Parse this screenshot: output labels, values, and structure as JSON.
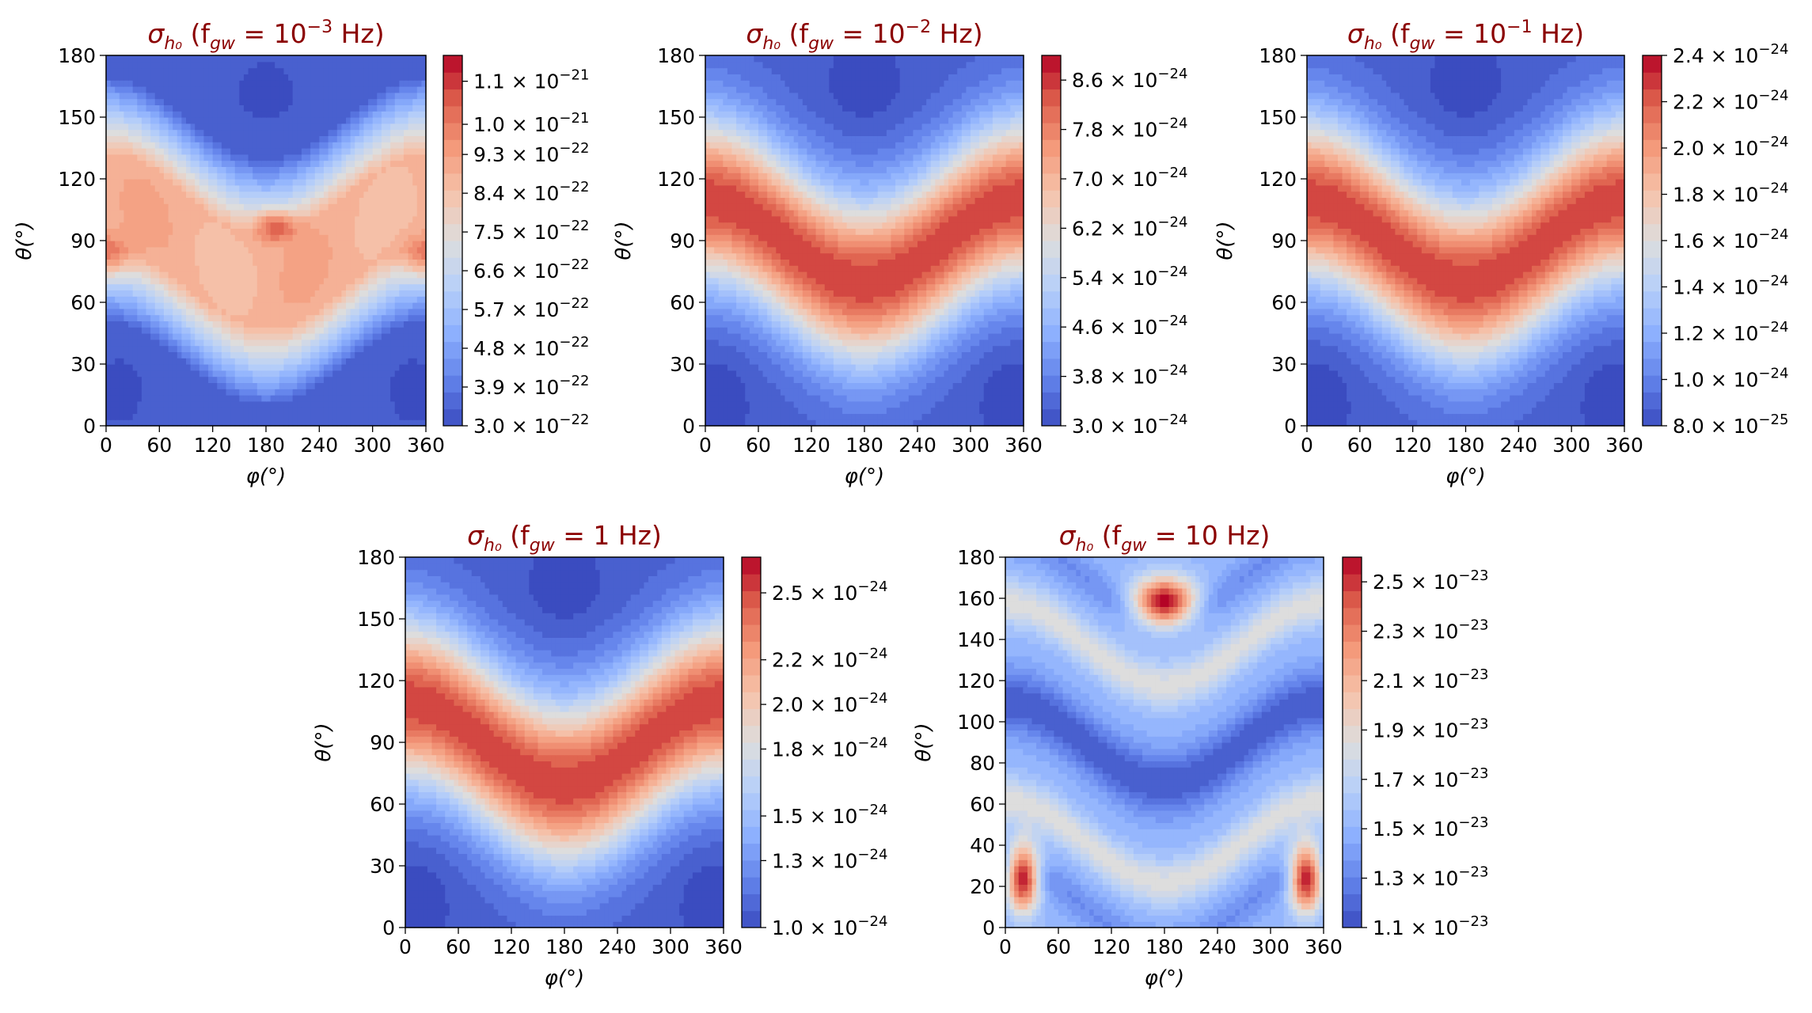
{
  "figure": {
    "background": "#ffffff",
    "colormap": "coolwarm"
  },
  "chart_data": [
    {
      "id": "p1",
      "type": "heatmap",
      "title_parts": [
        "σ",
        "h₀",
        " (f",
        "gw",
        " = 10",
        "−3",
        " Hz)"
      ],
      "xlabel": "φ(°)",
      "ylabel": "θ(°)",
      "xlim": [
        0,
        360
      ],
      "ylim": [
        0,
        180
      ],
      "xticks": [
        "0",
        "60",
        "120",
        "180",
        "240",
        "300",
        "360"
      ],
      "yticks": [
        "0",
        "30",
        "60",
        "90",
        "120",
        "150",
        "180"
      ],
      "colorbar": {
        "min_exp": -22,
        "ticks": [
          [
            "3.0",
            "−22"
          ],
          [
            "3.9",
            "−22"
          ],
          [
            "4.8",
            "−22"
          ],
          [
            "5.7",
            "−22"
          ],
          [
            "6.6",
            "−22"
          ],
          [
            "7.5",
            "−22"
          ],
          [
            "8.4",
            "−22"
          ],
          [
            "9.3",
            "−22"
          ],
          [
            "1.0",
            "−21"
          ],
          [
            "1.1",
            "−21"
          ]
        ],
        "range": [
          3e-22,
          1.16e-21
        ]
      },
      "model": "f1"
    },
    {
      "id": "p2",
      "type": "heatmap",
      "title_parts": [
        "σ",
        "h₀",
        " (f",
        "gw",
        " = 10",
        "−2",
        " Hz)"
      ],
      "xlabel": "φ(°)",
      "ylabel": "θ(°)",
      "xlim": [
        0,
        360
      ],
      "ylim": [
        0,
        180
      ],
      "xticks": [
        "0",
        "60",
        "120",
        "180",
        "240",
        "300",
        "360"
      ],
      "yticks": [
        "0",
        "30",
        "60",
        "90",
        "120",
        "150",
        "180"
      ],
      "colorbar": {
        "ticks": [
          [
            "3.0",
            "−24"
          ],
          [
            "3.8",
            "−24"
          ],
          [
            "4.6",
            "−24"
          ],
          [
            "5.4",
            "−24"
          ],
          [
            "6.2",
            "−24"
          ],
          [
            "7.0",
            "−24"
          ],
          [
            "7.8",
            "−24"
          ],
          [
            "8.6",
            "−24"
          ]
        ],
        "range": [
          3e-24,
          9e-24
        ]
      },
      "model": "wave"
    },
    {
      "id": "p3",
      "type": "heatmap",
      "title_parts": [
        "σ",
        "h₀",
        " (f",
        "gw",
        " = 10",
        "−1",
        " Hz)"
      ],
      "xlabel": "φ(°)",
      "ylabel": "θ(°)",
      "xlim": [
        0,
        360
      ],
      "ylim": [
        0,
        180
      ],
      "xticks": [
        "0",
        "60",
        "120",
        "180",
        "240",
        "300",
        "360"
      ],
      "yticks": [
        "0",
        "30",
        "60",
        "90",
        "120",
        "150",
        "180"
      ],
      "colorbar": {
        "ticks": [
          [
            "8.0",
            "−25"
          ],
          [
            "1.0",
            "−24"
          ],
          [
            "1.2",
            "−24"
          ],
          [
            "1.4",
            "−24"
          ],
          [
            "1.6",
            "−24"
          ],
          [
            "1.8",
            "−24"
          ],
          [
            "2.0",
            "−24"
          ],
          [
            "2.2",
            "−24"
          ],
          [
            "2.4",
            "−24"
          ]
        ],
        "range": [
          8e-25,
          2.4e-24
        ]
      },
      "model": "wave"
    },
    {
      "id": "p4",
      "type": "heatmap",
      "title_parts": [
        "σ",
        "h₀",
        " (f",
        "gw",
        " = 1",
        "",
        " Hz)"
      ],
      "xlabel": "φ(°)",
      "ylabel": "θ(°)",
      "xlim": [
        0,
        360
      ],
      "ylim": [
        0,
        180
      ],
      "xticks": [
        "0",
        "60",
        "120",
        "180",
        "240",
        "300",
        "360"
      ],
      "yticks": [
        "0",
        "30",
        "60",
        "90",
        "120",
        "150",
        "180"
      ],
      "colorbar": {
        "ticks": [
          [
            "1.0",
            "−24"
          ],
          [
            "1.3",
            "−24"
          ],
          [
            "1.5",
            "−24"
          ],
          [
            "1.8",
            "−24"
          ],
          [
            "2.0",
            "−24"
          ],
          [
            "2.2",
            "−24"
          ],
          [
            "2.5",
            "−24"
          ]
        ],
        "range": [
          1e-24,
          2.66e-24
        ]
      },
      "model": "wave"
    },
    {
      "id": "p5",
      "type": "heatmap",
      "title_parts": [
        "σ",
        "h₀",
        " (f",
        "gw",
        " = 10",
        "",
        " Hz)"
      ],
      "xlabel": "φ(°)",
      "ylabel": "θ(°)",
      "xlim": [
        0,
        360
      ],
      "ylim": [
        0,
        180
      ],
      "xticks": [
        "0",
        "60",
        "120",
        "180",
        "240",
        "300",
        "360"
      ],
      "yticks": [
        "0",
        "20",
        "40",
        "60",
        "80",
        "100",
        "120",
        "140",
        "160",
        "180"
      ],
      "colorbar": {
        "ticks": [
          [
            "1.1",
            "−23"
          ],
          [
            "1.3",
            "−23"
          ],
          [
            "1.5",
            "−23"
          ],
          [
            "1.7",
            "−23"
          ],
          [
            "1.9",
            "−23"
          ],
          [
            "2.1",
            "−23"
          ],
          [
            "2.3",
            "−23"
          ],
          [
            "2.5",
            "−23"
          ]
        ],
        "range": [
          1.1e-23,
          2.6e-23
        ]
      },
      "model": "f10"
    }
  ]
}
